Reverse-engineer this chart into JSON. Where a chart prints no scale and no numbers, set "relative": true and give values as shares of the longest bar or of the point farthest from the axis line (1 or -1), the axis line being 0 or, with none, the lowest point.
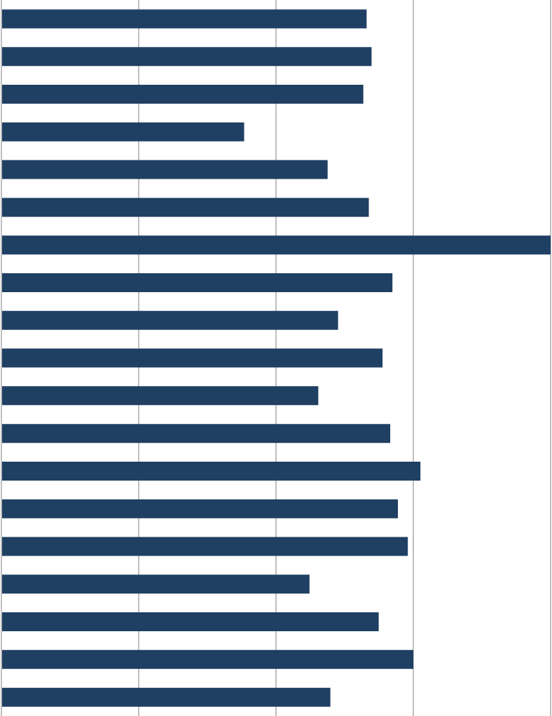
{
  "chart_data": {
    "type": "bar",
    "orientation": "horizontal",
    "relative": true,
    "grid": "x",
    "color": "#1f3f63",
    "categories": [
      null,
      null,
      null,
      null,
      null,
      null,
      null,
      null,
      null,
      null,
      null,
      null,
      null,
      null,
      null,
      null,
      null,
      null,
      null
    ],
    "values": [
      0.665,
      0.674,
      0.659,
      0.442,
      0.594,
      0.669,
      1,
      0.712,
      0.613,
      0.694,
      0.577,
      0.708,
      0.763,
      0.722,
      0.74,
      0.561,
      0.687,
      0.75,
      0.599
    ]
  }
}
